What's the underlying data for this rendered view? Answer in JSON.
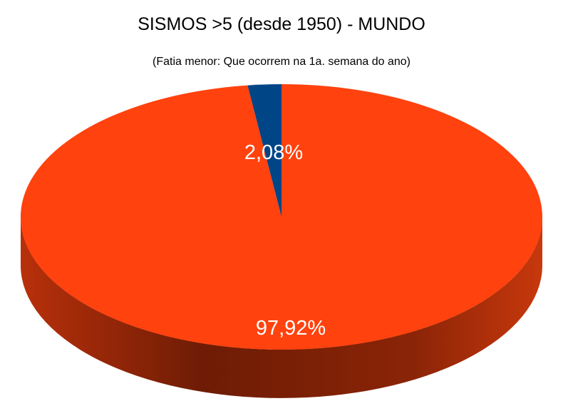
{
  "chart_data": {
    "type": "pie",
    "title": "SISMOS >5 (desde 1950) - MUNDO",
    "subtitle": "(Fatia menor: Que ocorrem na 1a. semana do ano)",
    "slices": [
      {
        "value": 2.08,
        "label": "2,08%",
        "color": "#004586"
      },
      {
        "value": 97.92,
        "label": "97,92%",
        "color": "#ff420e"
      }
    ],
    "style": "3d"
  }
}
